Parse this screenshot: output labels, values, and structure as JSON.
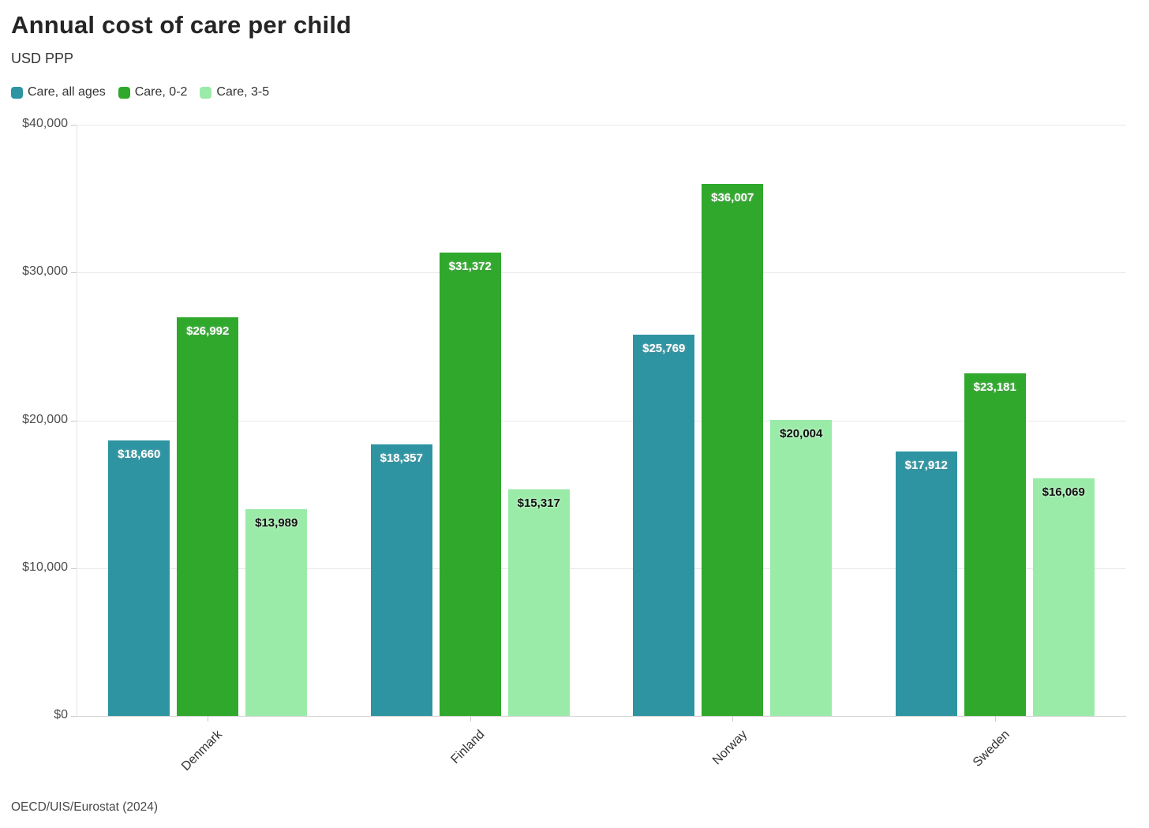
{
  "chart_data": {
    "type": "bar",
    "title": "Annual cost of care per child",
    "subtitle": "USD PPP",
    "xlabel": "",
    "ylabel": "USD PPP",
    "ylim": [
      0,
      40000
    ],
    "grid": "horizontal",
    "legend_position": "top",
    "categories": [
      "Denmark",
      "Finland",
      "Norway",
      "Sweden"
    ],
    "series": [
      {
        "name": "Care, all ages",
        "color": "#2e94a2",
        "label_style": "light-text",
        "values": [
          18660,
          18357,
          25769,
          17912
        ],
        "value_labels": [
          "$18,660",
          "$18,357",
          "$25,769",
          "$17,912"
        ]
      },
      {
        "name": "Care, 0-2",
        "color": "#2fa82c",
        "label_style": "light-text",
        "values": [
          26992,
          31372,
          36007,
          23181
        ],
        "value_labels": [
          "$26,992",
          "$31,372",
          "$36,007",
          "$23,181"
        ]
      },
      {
        "name": "Care, 3-5",
        "color": "#9beba8",
        "label_style": "dark-text",
        "values": [
          13989,
          15317,
          20004,
          16069
        ],
        "value_labels": [
          "$13,989",
          "$15,317",
          "$20,004",
          "$16,069"
        ]
      }
    ],
    "yticks": [
      {
        "value": 0,
        "label": "$0"
      },
      {
        "value": 10000,
        "label": "$10,000"
      },
      {
        "value": 20000,
        "label": "$20,000"
      },
      {
        "value": 30000,
        "label": "$30,000"
      },
      {
        "value": 40000,
        "label": "$40,000"
      }
    ]
  },
  "source": "OECD/UIS/Eurostat (2024)"
}
